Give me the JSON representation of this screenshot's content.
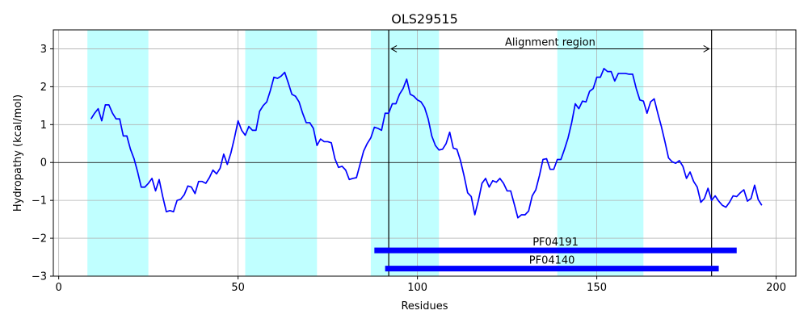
{
  "chart_data": {
    "type": "line",
    "title": "OLS29515",
    "xlabel": "Residues",
    "ylabel": "Hydropathy (kcal/mol)",
    "xlim": [
      -1.5,
      205.5
    ],
    "ylim": [
      -3,
      3.5
    ],
    "xticks": [
      0,
      50,
      100,
      150,
      200
    ],
    "yticks": [
      -3,
      -2,
      -1,
      0,
      1,
      2,
      3
    ],
    "grid": true,
    "line_color": "#0000ff",
    "region_color": "#c0ffff",
    "domain_color": "#0000ff",
    "hydrophobic_regions": [
      [
        8,
        25
      ],
      [
        52,
        72
      ],
      [
        87,
        106
      ],
      [
        139,
        163
      ]
    ],
    "alignment_region": {
      "label": "Alignment region",
      "start": 92,
      "end": 182,
      "y": 3.0
    },
    "domains": [
      {
        "name": "PF04191",
        "start": 88,
        "end": 189,
        "y": -2.32
      },
      {
        "name": "PF04140",
        "start": 91,
        "end": 184,
        "y": -2.8
      }
    ],
    "series": [
      {
        "x_start": 9,
        "values": [
          1.15,
          1.3,
          1.42,
          1.1,
          1.52,
          1.52,
          1.3,
          1.15,
          1.15,
          0.7,
          0.7,
          0.35,
          0.1,
          -0.25,
          -0.65,
          -0.65,
          -0.55,
          -0.42,
          -0.75,
          -0.45,
          -0.9,
          -1.3,
          -1.27,
          -1.3,
          -1.0,
          -0.97,
          -0.85,
          -0.62,
          -0.65,
          -0.82,
          -0.5,
          -0.5,
          -0.55,
          -0.4,
          -0.2,
          -0.3,
          -0.15,
          0.22,
          -0.05,
          0.25,
          0.65,
          1.1,
          0.85,
          0.72,
          0.95,
          0.85,
          0.85,
          1.35,
          1.5,
          1.6,
          1.9,
          2.25,
          2.22,
          2.28,
          2.38,
          2.1,
          1.8,
          1.75,
          1.6,
          1.3,
          1.05,
          1.05,
          0.9,
          0.45,
          0.62,
          0.55,
          0.55,
          0.52,
          0.1,
          -0.13,
          -0.1,
          -0.2,
          -0.45,
          -0.42,
          -0.4,
          -0.05,
          0.3,
          0.5,
          0.65,
          0.93,
          0.9,
          0.85,
          1.3,
          1.3,
          1.55,
          1.55,
          1.8,
          1.95,
          2.2,
          1.8,
          1.75,
          1.65,
          1.6,
          1.45,
          1.15,
          0.7,
          0.45,
          0.33,
          0.35,
          0.5,
          0.8,
          0.38,
          0.35,
          0.05,
          -0.35,
          -0.8,
          -0.9,
          -1.38,
          -1.0,
          -0.55,
          -0.42,
          -0.65,
          -0.48,
          -0.52,
          -0.42,
          -0.55,
          -0.75,
          -0.75,
          -1.1,
          -1.46,
          -1.38,
          -1.38,
          -1.28,
          -0.88,
          -0.72,
          -0.35,
          0.08,
          0.1,
          -0.18,
          -0.18,
          0.08,
          0.08,
          0.35,
          0.65,
          1.05,
          1.55,
          1.42,
          1.62,
          1.6,
          1.88,
          1.95,
          2.25,
          2.25,
          2.48,
          2.4,
          2.4,
          2.15,
          2.35,
          2.35,
          2.35,
          2.33,
          2.33,
          1.95,
          1.65,
          1.62,
          1.3,
          1.6,
          1.68,
          1.3,
          0.95,
          0.55,
          0.12,
          0.02,
          -0.02,
          0.05,
          -0.1,
          -0.42,
          -0.25,
          -0.5,
          -0.65,
          -1.05,
          -0.95,
          -0.68,
          -1.0,
          -0.88,
          -1.02,
          -1.13,
          -1.18,
          -1.05,
          -0.88,
          -0.9,
          -0.8,
          -0.72,
          -1.02,
          -0.95,
          -0.6,
          -0.98,
          -1.13
        ]
      }
    ]
  }
}
